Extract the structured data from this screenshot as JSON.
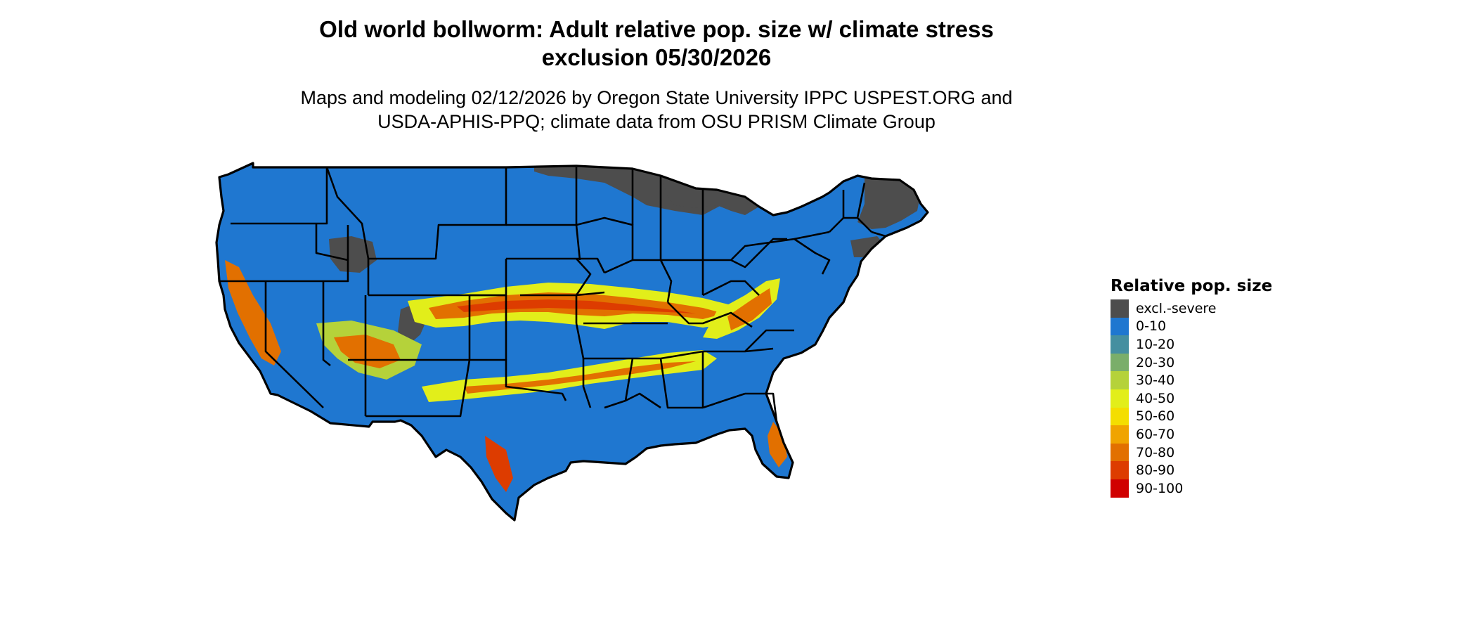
{
  "title_line1": "Old world bollworm: Adult relative pop. size w/ climate stress",
  "title_line2": "exclusion 05/30/2026",
  "subtitle_line1": "Maps and modeling 02/12/2026 by Oregon State University IPPC USPEST.ORG and",
  "subtitle_line2": "USDA-APHIS-PPQ; climate data from OSU PRISM Climate Group",
  "legend": {
    "title": "Relative pop. size",
    "items": [
      {
        "label": "excl.-severe",
        "color": "#4d4d4d"
      },
      {
        "label": "0-10",
        "color": "#1f77d0"
      },
      {
        "label": "10-20",
        "color": "#458fa0"
      },
      {
        "label": "20-30",
        "color": "#7aae6a"
      },
      {
        "label": "30-40",
        "color": "#b5d23a"
      },
      {
        "label": "40-50",
        "color": "#e2ee1a"
      },
      {
        "label": "50-60",
        "color": "#f4de00"
      },
      {
        "label": "60-70",
        "color": "#f0a400"
      },
      {
        "label": "70-80",
        "color": "#e27000"
      },
      {
        "label": "80-90",
        "color": "#dd3c00"
      },
      {
        "label": "90-100",
        "color": "#d00000"
      }
    ]
  },
  "map": {
    "region": "contiguous-us",
    "base_color": "#1f77d0",
    "exclusion_color": "#4d4d4d",
    "border_color": "#000000"
  }
}
